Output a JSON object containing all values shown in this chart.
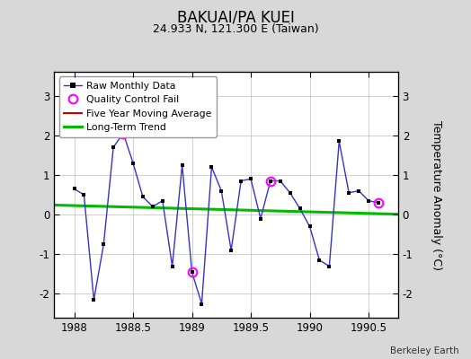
{
  "title": "BAKUAI/PA KUEI",
  "subtitle": "24.933 N, 121.300 E (Taiwan)",
  "ylabel": "Temperature Anomaly (°C)",
  "credit": "Berkeley Earth",
  "background_color": "#d8d8d8",
  "plot_bg_color": "#ffffff",
  "x_months": [
    1988.0,
    1988.083,
    1988.167,
    1988.25,
    1988.333,
    1988.417,
    1988.5,
    1988.583,
    1988.667,
    1988.75,
    1988.833,
    1988.917,
    1989.0,
    1989.083,
    1989.167,
    1989.25,
    1989.333,
    1989.417,
    1989.5,
    1989.583,
    1989.667,
    1989.75,
    1989.833,
    1989.917,
    1990.0,
    1990.083,
    1990.167,
    1990.25,
    1990.333,
    1990.417,
    1990.5,
    1990.583
  ],
  "y_values": [
    0.65,
    0.5,
    -2.15,
    -0.75,
    1.7,
    2.05,
    1.3,
    0.45,
    0.2,
    0.35,
    -1.3,
    1.25,
    -1.45,
    -2.25,
    1.2,
    0.6,
    -0.9,
    0.85,
    0.9,
    -0.1,
    0.85,
    0.85,
    0.55,
    0.15,
    -0.3,
    -1.15,
    -1.3,
    1.85,
    0.55,
    0.6,
    0.35,
    0.3
  ],
  "qc_fail_indices": [
    5,
    12,
    20,
    31
  ],
  "trend_x": [
    1987.83,
    1990.75
  ],
  "trend_y": [
    0.24,
    0.01
  ],
  "xlim": [
    1987.83,
    1990.75
  ],
  "ylim": [
    -2.6,
    3.6
  ],
  "yticks": [
    -2,
    -1,
    0,
    1,
    2,
    3
  ],
  "xticks": [
    1988.0,
    1988.5,
    1989.0,
    1989.5,
    1990.0,
    1990.5
  ],
  "xtick_labels": [
    "1988",
    "1988.5",
    "1989",
    "1989.5",
    "1990",
    "1990.5"
  ],
  "line_color": "#3333cc",
  "marker_color": "#000000",
  "qc_color": "#ff00ff",
  "trend_color": "#00bb00",
  "moving_avg_color": "#cc0000",
  "grid_color": "#bbbbbb"
}
